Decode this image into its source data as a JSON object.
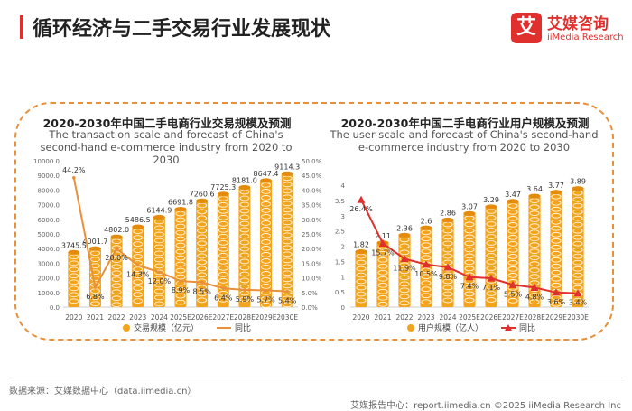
{
  "header": {
    "title": "循环经济与二手交易行业发展现状",
    "logo_icon": "艾",
    "logo_cn": "艾媒咨询",
    "logo_en": "iiMedia Research"
  },
  "colors": {
    "bar": "#f4a31d",
    "bar_dark": "#e58a0a",
    "line_left": "#e8903a",
    "line_right": "#e0302e",
    "frame": "#e8903a"
  },
  "chart_data": [
    {
      "type": "bar",
      "title": "2020-2030年中国二手电商行业交易规模及预测",
      "subtitle": "The transaction scale and forecast of China's second-hand e-commerce industry from 2020 to 2030",
      "categories": [
        "2020",
        "2021",
        "2022",
        "2023",
        "2024",
        "2025E",
        "2026E",
        "2027E",
        "2028E",
        "2029E",
        "2030E"
      ],
      "series": [
        {
          "name": "交易规模（亿元）",
          "kind": "bar",
          "axis": "left",
          "values": [
            3745.5,
            4001.7,
            4802.0,
            5486.5,
            6144.9,
            6691.8,
            7260.6,
            7725.3,
            8181.0,
            8647.4,
            9114.3
          ],
          "labels": [
            "3745.5",
            "4001.7",
            "4802.0",
            "5486.5",
            "6144.9",
            "6691.8",
            "7260.6",
            "7725.3",
            "8181.0",
            "8647.4",
            "9114.3"
          ]
        },
        {
          "name": "同比",
          "kind": "line",
          "axis": "right",
          "values": [
            44.2,
            6.8,
            20.0,
            14.3,
            12.0,
            8.9,
            8.5,
            6.4,
            5.9,
            5.7,
            5.4
          ],
          "labels": [
            "44.2%",
            "6.8%",
            "20.0%",
            "14.3%",
            "12.0%",
            "8.9%",
            "8.5%",
            "6.4%",
            "5.9%",
            "5.7%",
            "5.4%"
          ]
        }
      ],
      "ylim_left": [
        0,
        10000
      ],
      "yticks_left": [
        "0.0",
        "1000.0",
        "2000.0",
        "3000.0",
        "4000.0",
        "5000.0",
        "6000.0",
        "7000.0",
        "8000.0",
        "9000.0",
        "10000.0"
      ],
      "ylim_right": [
        0,
        50
      ],
      "yticks_right": [
        "0.0%",
        "5.0%",
        "10.0%",
        "15.0%",
        "20.0%",
        "25.0%",
        "30.0%",
        "35.0%",
        "40.0%",
        "45.0%",
        "50.0%"
      ],
      "legend": "bottom-center"
    },
    {
      "type": "bar",
      "title": "2020-2030年中国二手电商行业用户规模及预测",
      "subtitle": "The user scale and forecast of China's second-hand e-commerce industry from 2020 to 2030",
      "categories": [
        "2020",
        "2021",
        "2022",
        "2023",
        "2024",
        "2025E",
        "2026E",
        "2027E",
        "2028E",
        "2029E",
        "2030E"
      ],
      "series": [
        {
          "name": "用户规模（亿人）",
          "kind": "bar",
          "axis": "left",
          "values": [
            1.82,
            2.11,
            2.36,
            2.6,
            2.86,
            3.07,
            3.29,
            3.47,
            3.64,
            3.77,
            3.89
          ],
          "labels": [
            "1.82",
            "2.11",
            "2.36",
            "2.6",
            "2.86",
            "3.07",
            "3.29",
            "3.47",
            "3.64",
            "3.77",
            "3.89"
          ]
        },
        {
          "name": "同比",
          "kind": "line",
          "axis": "right",
          "values": [
            26.4,
            15.7,
            11.9,
            10.5,
            9.8,
            7.4,
            7.1,
            5.5,
            4.8,
            3.6,
            3.4
          ],
          "labels": [
            "26.4%",
            "15.7%",
            "11.9%",
            "10.5%",
            "9.8%",
            "7.4%",
            "7.1%",
            "5.5%",
            "4.8%",
            "3.6%",
            "3.4%"
          ]
        }
      ],
      "ylim_left": [
        0,
        4
      ],
      "yticks_left": [
        "0",
        "0.5",
        "1",
        "1.5",
        "2",
        "2.5",
        "3",
        "3.5",
        "4"
      ],
      "ylim_right": [
        0,
        30
      ],
      "yticks_right": [],
      "legend": "bottom-center"
    }
  ],
  "footer": {
    "source": "数据来源：艾媒数据中心（data.iimedia.cn）",
    "right": "艾媒报告中心：report.iimedia.cn    ©2025  iiMedia Research  Inc"
  }
}
